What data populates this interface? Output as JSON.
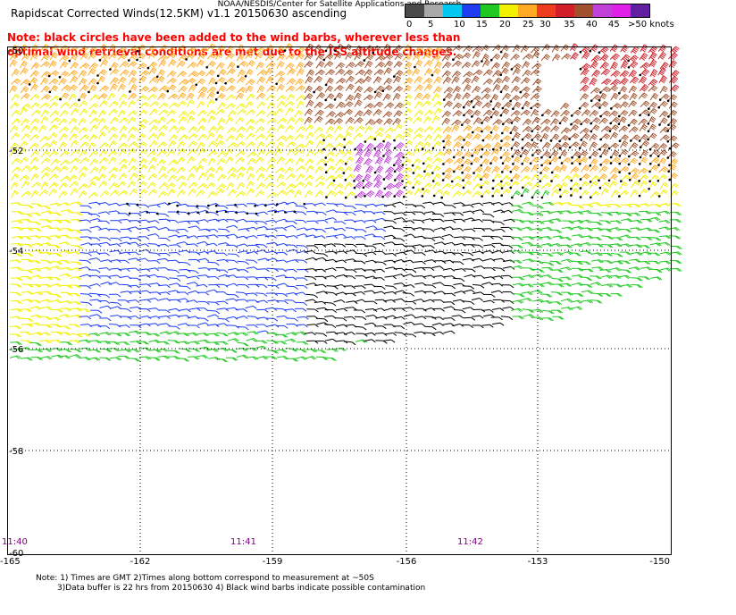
{
  "header": {
    "title": "Rapidscat Corrected Winds(12.5KM) v1.1 20150630 ascending",
    "note": "Note: black circles have been added to the wind barbs, wherever less than optimal wind retrieval conditions are met due to the ISS altitude changes."
  },
  "color_scale": {
    "labels": [
      "0",
      "5",
      "10",
      "15",
      "20",
      "25",
      "30",
      "35",
      "40",
      "45",
      ">50 knots"
    ],
    "colors": [
      "#4a4a4a",
      "#a8a8a8",
      "#00c8f0",
      "#1e3cf0",
      "#22c822",
      "#f0f000",
      "#ffaa22",
      "#f03c1e",
      "#d21e28",
      "#a0502a",
      "#c040d8",
      "#e020e8",
      "#6020a0"
    ]
  },
  "map": {
    "lat_labels": [
      "-50",
      "-52",
      "-54",
      "-56",
      "-58",
      "-60"
    ],
    "lon_labels": [
      "-165",
      "-162",
      "-159",
      "-156",
      "-153",
      "-150"
    ],
    "time_labels": [
      "11:40",
      "11:41",
      "11:42"
    ],
    "time_color": "#800080"
  },
  "footer": {
    "line1": "Note: 1) Times are GMT 2)Times along bottom correspond to measurement at ~50S",
    "line2": "3)Data buffer is 22 hrs from 20150630 4) Black wind barbs indicate possible contamination",
    "credit": "NOAA/NESDIS/Center for Satellite Applications and Research"
  }
}
